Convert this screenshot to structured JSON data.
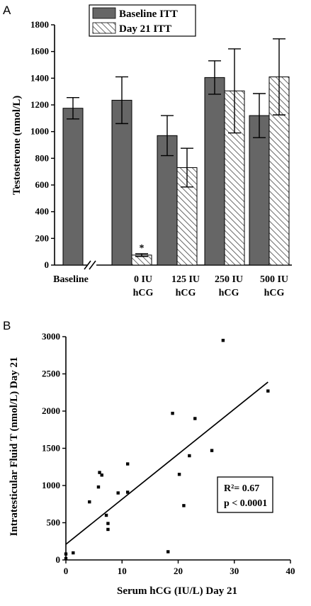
{
  "chart_data": [
    {
      "panel_label": "A",
      "type": "bar",
      "ylabel": "Testosterone (nmol/L)",
      "ylim": [
        0,
        1800
      ],
      "yticks": [
        0,
        200,
        400,
        600,
        800,
        1000,
        1200,
        1400,
        1600,
        1800
      ],
      "legend": {
        "placement": "top-center",
        "entries": [
          "Baseline ITT",
          "Day 21 ITT"
        ]
      },
      "groups": [
        {
          "label_lines": [
            "Baseline"
          ],
          "baseline": {
            "value": 1175,
            "err": 80
          },
          "day21": null
        },
        {
          "label_lines": [
            "0 IU",
            "hCG"
          ],
          "baseline": {
            "value": 1235,
            "err": 175
          },
          "day21": {
            "value": 75,
            "err": 10,
            "annotation": "*"
          }
        },
        {
          "label_lines": [
            "125 IU",
            "hCG"
          ],
          "baseline": {
            "value": 970,
            "err": 150
          },
          "day21": {
            "value": 730,
            "err": 145
          }
        },
        {
          "label_lines": [
            "250 IU",
            "hCG"
          ],
          "baseline": {
            "value": 1405,
            "err": 125
          },
          "day21": {
            "value": 1305,
            "err": 315
          }
        },
        {
          "label_lines": [
            "500 IU",
            "hCG"
          ],
          "baseline": {
            "value": 1120,
            "err": 165
          },
          "day21": {
            "value": 1410,
            "err": 285
          }
        }
      ],
      "axis_break_after_group": 0,
      "colors": {
        "baseline": "#666666",
        "day21_fill": "#ffffff",
        "day21_hatch": "#444444"
      }
    },
    {
      "panel_label": "B",
      "type": "scatter",
      "xlabel": "Serum hCG (IU/L)  Day 21",
      "ylabel": "Intratesticular Fluid T (nmol/L)  Day 21",
      "xlim": [
        0,
        40
      ],
      "ylim": [
        0,
        3000
      ],
      "xticks": [
        0,
        10,
        20,
        30,
        40
      ],
      "yticks": [
        0,
        500,
        1000,
        1500,
        2000,
        2500,
        3000
      ],
      "points": [
        [
          0,
          20
        ],
        [
          0,
          80
        ],
        [
          1.3,
          95
        ],
        [
          4.2,
          780
        ],
        [
          5.8,
          980
        ],
        [
          6,
          1175
        ],
        [
          6.4,
          1140
        ],
        [
          7.2,
          600
        ],
        [
          7.5,
          410
        ],
        [
          7.5,
          490
        ],
        [
          9.3,
          900
        ],
        [
          11,
          910
        ],
        [
          11,
          1290
        ],
        [
          18.2,
          110
        ],
        [
          19,
          1970
        ],
        [
          20.2,
          1150
        ],
        [
          21,
          730
        ],
        [
          22,
          1400
        ],
        [
          23,
          1900
        ],
        [
          26,
          1470
        ],
        [
          28,
          2950
        ],
        [
          36,
          2270
        ]
      ],
      "fit_line": {
        "x": [
          0,
          36
        ],
        "y": [
          210,
          2390
        ]
      },
      "stats_lines": [
        "R²= 0.67",
        "p < 0.0001"
      ]
    }
  ]
}
